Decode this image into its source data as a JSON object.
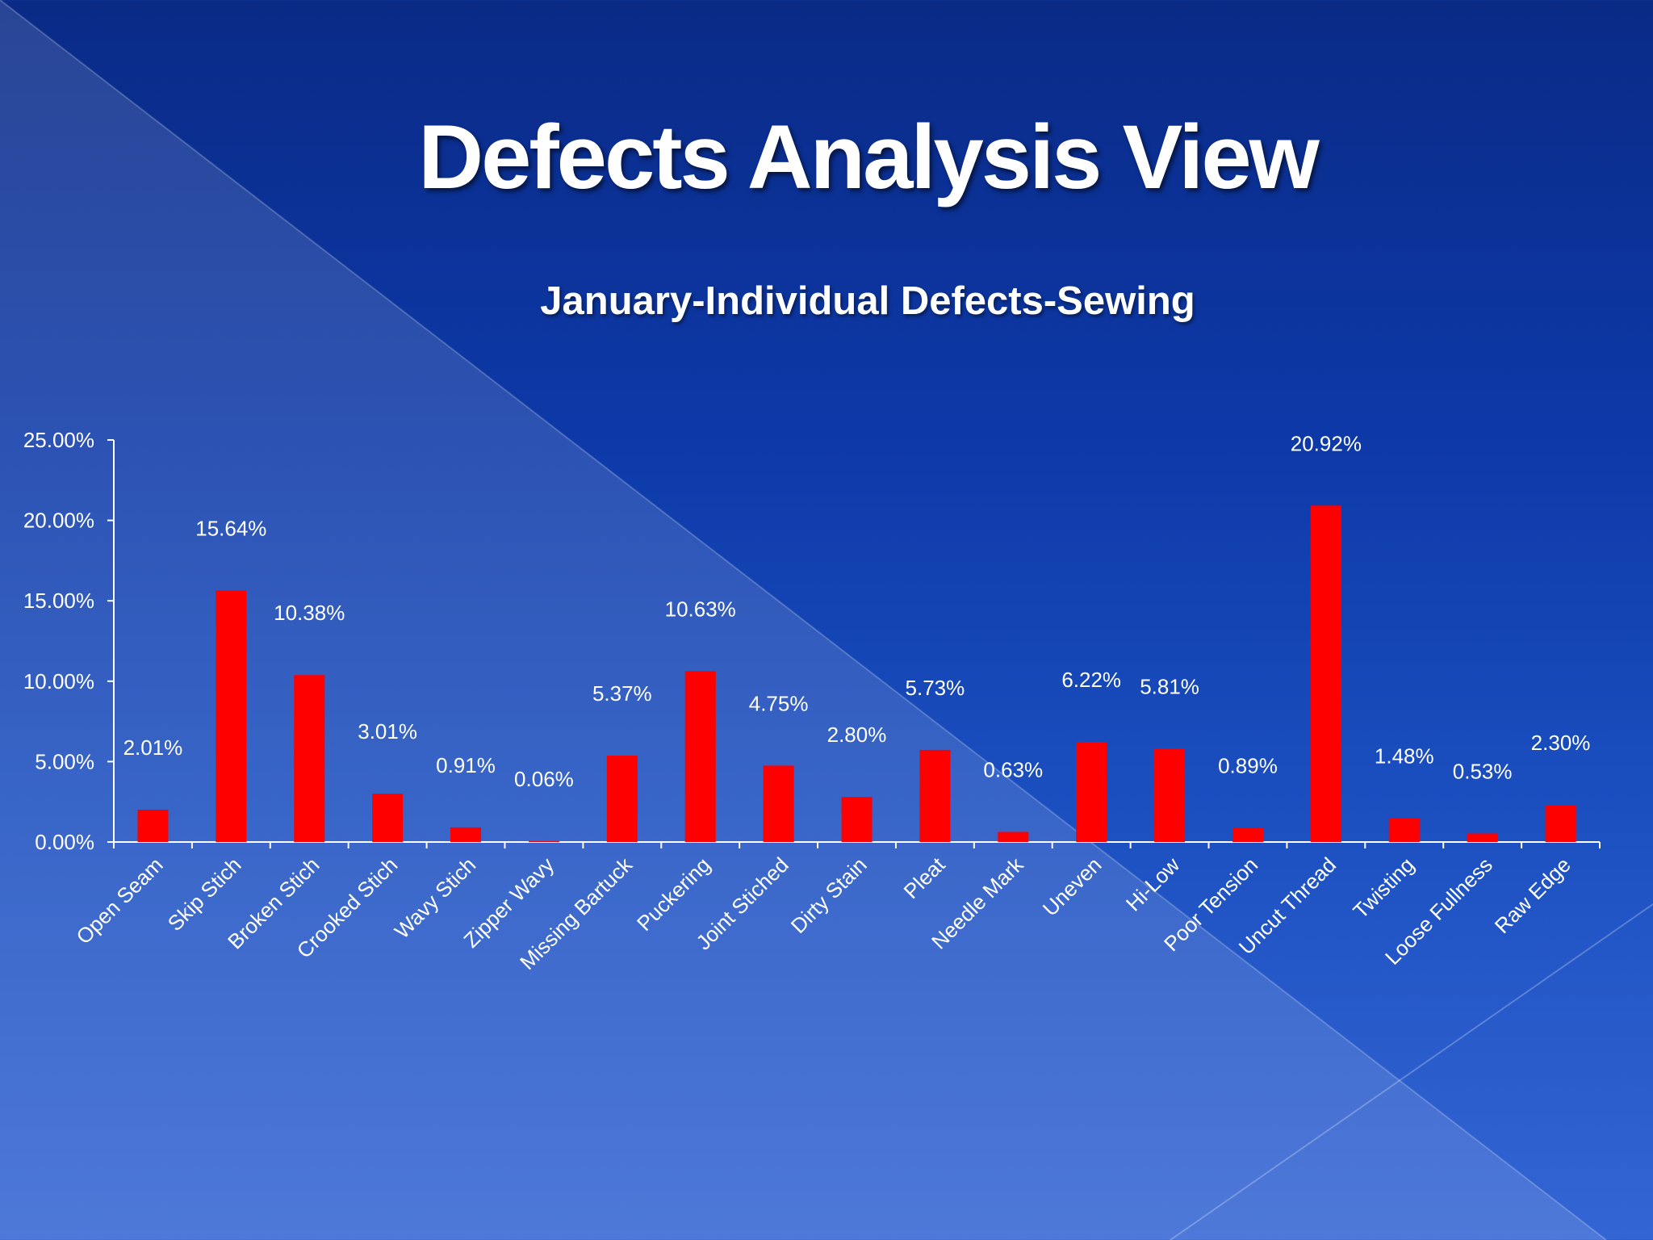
{
  "slide": {
    "title": "Defects Analysis View",
    "background_colors": [
      "#0a2a86",
      "#3465d4"
    ]
  },
  "chart_data": {
    "type": "bar",
    "title": "January-Individual Defects-Sewing",
    "xlabel": "",
    "ylabel": "",
    "ylim": [
      0,
      25
    ],
    "yticks": [
      0,
      5,
      10,
      15,
      20,
      25
    ],
    "ytick_labels": [
      "0.00%",
      "5.00%",
      "10.00%",
      "15.00%",
      "20.00%",
      "25.00%"
    ],
    "grid": false,
    "legend": "none",
    "bar_color": "#ff0000",
    "categories": [
      "Open Seam",
      "Skip Stich",
      "Broken Stich",
      "Crooked Stich",
      "Wavy Stich",
      "Zipper Wavy",
      "Missing Bartuck",
      "Puckering",
      "Joint Stiched",
      "Dirty Stain",
      "Pleat",
      "Needle Mark",
      "Uneven",
      "Hi-Low",
      "Poor Tension",
      "Uncut Thread",
      "Twisting",
      "Loose Fullness",
      "Raw Edge"
    ],
    "values": [
      2.01,
      15.64,
      10.38,
      3.01,
      0.91,
      0.06,
      5.37,
      10.63,
      4.75,
      2.8,
      5.73,
      0.63,
      6.22,
      5.81,
      0.89,
      20.92,
      1.48,
      0.53,
      2.3
    ],
    "data_labels": [
      "2.01%",
      "15.64%",
      "10.38%",
      "3.01%",
      "0.91%",
      "0.06%",
      "5.37%",
      "10.63%",
      "4.75%",
      "2.80%",
      "5.73%",
      "0.63%",
      "6.22%",
      "5.81%",
      "0.89%",
      "20.92%",
      "1.48%",
      "0.53%",
      "2.30%"
    ]
  }
}
